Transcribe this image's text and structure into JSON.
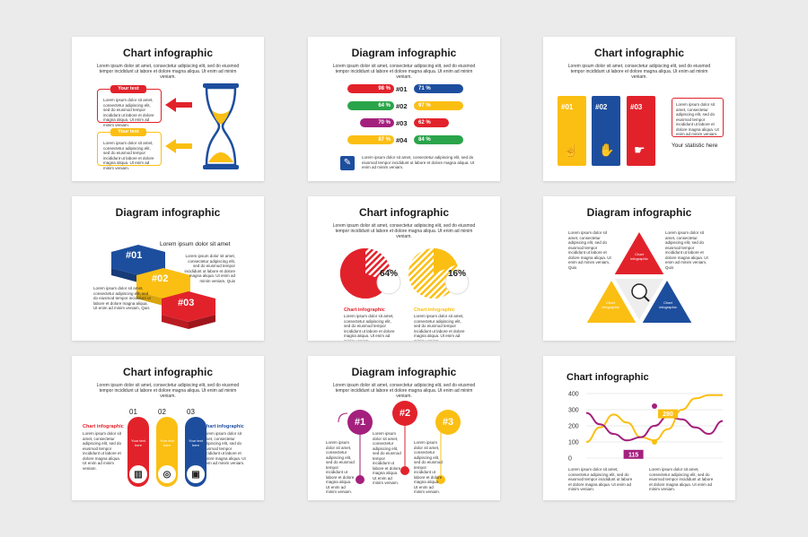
{
  "colors": {
    "red": "#e2222b",
    "yellow": "#fbbf13",
    "blue": "#1d4e9e",
    "purple": "#a3207d",
    "green": "#2aa44a",
    "teal": "#1d5fa8",
    "bg": "#ebebeb"
  },
  "body_text": "Lorem ipsum dolor sit amet, consectetur adipiscing elit, sed do eiusmod tempor incididunt ut labore et dolore magna aliqua. Ut enim ad minim veniam.",
  "small_text": "Lorem ipsum dolor sit amet, consectetur adipiscing elit, sed do eiusmod tempor incididunt ut labore et dolore magna aliqua. Ut enim ad minim veniam.",
  "slides": {
    "s1": {
      "title": "Chart infographic",
      "your_text_1": "Your text",
      "your_text_2": "Your text",
      "icon": "hourglass-icon"
    },
    "s2": {
      "title": "Diagram infographic",
      "rows": [
        {
          "left": "98 %",
          "num": "#01",
          "right": "71 %"
        },
        {
          "left": "64 %",
          "num": "#02",
          "right": "97 %"
        },
        {
          "left": "70 %",
          "num": "#03",
          "right": "62 %"
        },
        {
          "left": "87 %",
          "num": "#04",
          "right": "84 %"
        }
      ],
      "icon": "document-edit-icon"
    },
    "s3": {
      "title": "Chart infographic",
      "tabs": [
        "#01",
        "#02",
        "#03"
      ],
      "statistic": "Your statistic here"
    },
    "s4": {
      "title": "Diagram infographic",
      "steps": [
        "#01",
        "#02",
        "#03"
      ],
      "heading": "Lorem ipsum dolor sit amet",
      "side_text": "Lorem ipsum dolor sit amet, consectetur adipiscing elit, sed do eiusmod tempor incididunt ut labore et dolore magna aliqua. Ut enim ad minim veniam, Quis",
      "left_text": "Lorem ipsum dolor sit amet, consectetur adipiscing elit, sed do eiusmod tempor incididunt ut labore et dolore magna aliqua. Ut enim ad minim veniam, Quis"
    },
    "s5": {
      "title": "Chart infographic",
      "pct_1": "64%",
      "pct_2": "16%",
      "caption_1": "Chart infographic",
      "caption_2": "Chart infographic"
    },
    "s6": {
      "title": "Diagram infographic",
      "tri_label": "Chart infographic",
      "left_text": "Lorem ipsum dolor sit amet, consectetur adipiscing elit, sed do eiusmod tempor incididunt ut labore et dolore magna aliqua. Ut enim ad minim veniam, Quis",
      "right_text": "Lorem ipsum dolor sit amet, consectetur adipiscing elit, sed do eiusmod tempor incididunt ut labore et dolore magna aliqua. Ut enim ad minim veniam, Quis"
    },
    "s7": {
      "title": "Chart infographic",
      "nums": [
        "01",
        "02",
        "03"
      ],
      "label_left": "Chart infographic",
      "label_right": "Chart infographic",
      "card": "Your text here"
    },
    "s8": {
      "title": "Diagram infographic",
      "nums": [
        "#1",
        "#2",
        "#3"
      ]
    },
    "s9": {
      "title": "Chart infographic",
      "badge_1": "280",
      "badge_2": "115"
    }
  },
  "chart_data": {
    "type": "line",
    "title": "Chart infographic",
    "yticks": [
      "400",
      "300",
      "200",
      "100",
      "0"
    ],
    "ylim": [
      0,
      400
    ],
    "x": [
      0,
      1,
      2,
      3,
      4,
      5,
      6,
      7,
      8,
      9,
      10
    ],
    "series": [
      {
        "values": [
          100,
          190,
          270,
          220,
          130,
          110,
          180,
          300,
          370,
          390,
          390
        ]
      },
      {
        "values": [
          280,
          210,
          150,
          110,
          130,
          200,
          260,
          240,
          190,
          150,
          230
        ]
      }
    ],
    "annotations": [
      "280",
      "115"
    ]
  }
}
